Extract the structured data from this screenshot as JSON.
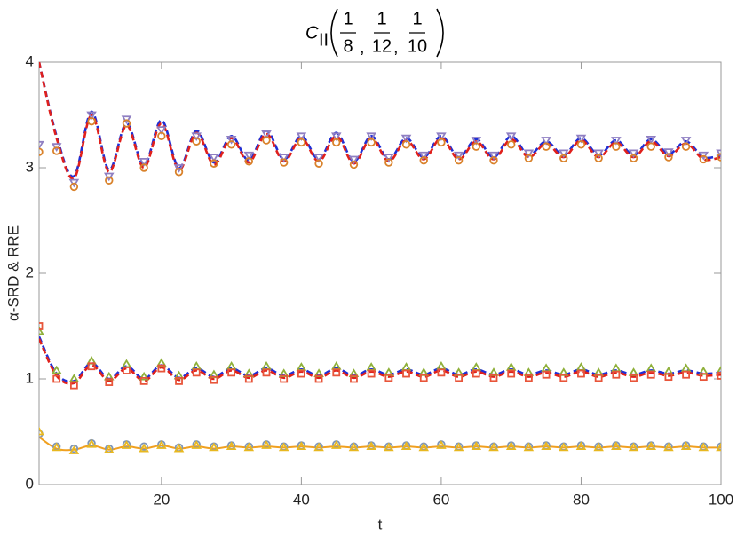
{
  "chart_data": {
    "type": "line",
    "title": {
      "symbol": "C",
      "subscript": "II",
      "fractions": [
        [
          "1",
          "8"
        ],
        [
          "1",
          "12"
        ],
        [
          "1",
          "10"
        ]
      ],
      "separator": ","
    },
    "x_label": "t",
    "y_label": "α-SRD & RRE",
    "xlim": [
      2.5,
      100
    ],
    "ylim": [
      0,
      4
    ],
    "xticks": [
      20,
      40,
      60,
      80,
      100
    ],
    "yticks": [
      0,
      1,
      2,
      3,
      4
    ],
    "x": [
      2.5,
      5,
      7.5,
      10,
      12.5,
      15,
      17.5,
      20,
      22.5,
      25,
      27.5,
      30,
      32.5,
      35,
      37.5,
      40,
      42.5,
      45,
      47.5,
      50,
      52.5,
      55,
      57.5,
      60,
      62.5,
      65,
      67.5,
      70,
      72.5,
      75,
      77.5,
      80,
      82.5,
      85,
      87.5,
      90,
      92.5,
      95,
      97.5,
      100
    ],
    "series": [
      {
        "color": "#1f2fd6",
        "style": "dash",
        "values": [
          4.0,
          3.3,
          2.92,
          3.53,
          2.98,
          3.42,
          3.02,
          3.45,
          3.0,
          3.35,
          3.05,
          3.3,
          3.07,
          3.35,
          3.08,
          3.3,
          3.08,
          3.33,
          3.06,
          3.3,
          3.08,
          3.28,
          3.1,
          3.3,
          3.1,
          3.27,
          3.1,
          3.3,
          3.12,
          3.25,
          3.12,
          3.28,
          3.12,
          3.26,
          3.12,
          3.27,
          3.13,
          3.25,
          3.1,
          3.12
        ]
      },
      {
        "color": "#e0201c",
        "style": "dash",
        "values": [
          4.0,
          3.28,
          2.9,
          3.5,
          2.96,
          3.4,
          3.0,
          3.42,
          2.98,
          3.33,
          3.03,
          3.28,
          3.05,
          3.32,
          3.06,
          3.28,
          3.06,
          3.3,
          3.04,
          3.28,
          3.06,
          3.26,
          3.08,
          3.28,
          3.08,
          3.25,
          3.08,
          3.27,
          3.1,
          3.23,
          3.1,
          3.26,
          3.1,
          3.24,
          3.1,
          3.25,
          3.11,
          3.23,
          3.08,
          3.1
        ]
      },
      {
        "color": "#8f7fc2",
        "style": "triangle",
        "values": [
          3.22,
          3.2,
          2.86,
          3.5,
          2.92,
          3.46,
          3.06,
          3.36,
          3.0,
          3.3,
          3.1,
          3.27,
          3.12,
          3.32,
          3.1,
          3.3,
          3.1,
          3.3,
          3.08,
          3.3,
          3.1,
          3.28,
          3.12,
          3.3,
          3.12,
          3.26,
          3.12,
          3.3,
          3.14,
          3.26,
          3.14,
          3.28,
          3.14,
          3.26,
          3.14,
          3.27,
          3.15,
          3.26,
          3.12,
          3.14
        ]
      },
      {
        "color": "#d9822b",
        "style": "circle",
        "values": [
          3.15,
          3.16,
          2.82,
          3.44,
          2.88,
          3.42,
          3.0,
          3.3,
          2.96,
          3.25,
          3.04,
          3.22,
          3.06,
          3.26,
          3.05,
          3.24,
          3.04,
          3.24,
          3.03,
          3.24,
          3.05,
          3.22,
          3.07,
          3.24,
          3.07,
          3.2,
          3.07,
          3.22,
          3.09,
          3.2,
          3.09,
          3.22,
          3.09,
          3.2,
          3.09,
          3.2,
          3.1,
          3.2,
          3.08,
          3.1
        ]
      },
      {
        "color": "#1f2fd6",
        "style": "dash",
        "values": [
          1.4,
          1.05,
          0.98,
          1.15,
          1.0,
          1.12,
          1.0,
          1.13,
          1.01,
          1.1,
          1.02,
          1.1,
          1.03,
          1.1,
          1.03,
          1.09,
          1.03,
          1.1,
          1.03,
          1.09,
          1.04,
          1.09,
          1.04,
          1.1,
          1.04,
          1.09,
          1.04,
          1.09,
          1.04,
          1.08,
          1.04,
          1.09,
          1.04,
          1.08,
          1.04,
          1.08,
          1.05,
          1.08,
          1.05,
          1.06
        ]
      },
      {
        "color": "#e0201c",
        "style": "dash",
        "values": [
          1.38,
          1.03,
          0.96,
          1.13,
          0.98,
          1.1,
          0.98,
          1.11,
          0.99,
          1.08,
          1.0,
          1.08,
          1.01,
          1.08,
          1.01,
          1.07,
          1.01,
          1.08,
          1.01,
          1.07,
          1.02,
          1.07,
          1.02,
          1.08,
          1.02,
          1.07,
          1.02,
          1.07,
          1.02,
          1.06,
          1.02,
          1.07,
          1.02,
          1.06,
          1.02,
          1.06,
          1.03,
          1.06,
          1.03,
          1.04
        ]
      },
      {
        "color": "#8fb03a",
        "style": "triangle",
        "values": [
          1.45,
          1.08,
          1.0,
          1.17,
          1.02,
          1.14,
          1.02,
          1.15,
          1.03,
          1.12,
          1.04,
          1.12,
          1.05,
          1.12,
          1.05,
          1.11,
          1.05,
          1.12,
          1.05,
          1.11,
          1.06,
          1.11,
          1.06,
          1.12,
          1.06,
          1.11,
          1.06,
          1.11,
          1.06,
          1.1,
          1.06,
          1.11,
          1.06,
          1.1,
          1.06,
          1.1,
          1.07,
          1.1,
          1.07,
          1.08
        ]
      },
      {
        "color": "#e8553a",
        "style": "square",
        "values": [
          1.5,
          1.0,
          0.94,
          1.12,
          0.97,
          1.08,
          0.98,
          1.1,
          0.98,
          1.06,
          0.99,
          1.06,
          1.0,
          1.06,
          1.0,
          1.05,
          1.0,
          1.06,
          1.0,
          1.05,
          1.01,
          1.05,
          1.01,
          1.06,
          1.01,
          1.05,
          1.01,
          1.05,
          1.01,
          1.04,
          1.01,
          1.05,
          1.01,
          1.04,
          1.01,
          1.04,
          1.02,
          1.04,
          1.02,
          1.03
        ]
      },
      {
        "color": "#f0a020",
        "style": "solid",
        "values": [
          0.45,
          0.34,
          0.33,
          0.37,
          0.33,
          0.36,
          0.34,
          0.37,
          0.34,
          0.36,
          0.34,
          0.36,
          0.35,
          0.36,
          0.35,
          0.36,
          0.35,
          0.36,
          0.35,
          0.36,
          0.35,
          0.36,
          0.35,
          0.36,
          0.35,
          0.36,
          0.35,
          0.36,
          0.35,
          0.36,
          0.35,
          0.36,
          0.35,
          0.36,
          0.35,
          0.36,
          0.35,
          0.36,
          0.35,
          0.35
        ]
      },
      {
        "color": "#7f96b8",
        "style": "circle",
        "values": [
          0.48,
          0.36,
          0.34,
          0.39,
          0.34,
          0.38,
          0.36,
          0.38,
          0.35,
          0.38,
          0.36,
          0.37,
          0.36,
          0.38,
          0.36,
          0.37,
          0.36,
          0.38,
          0.36,
          0.37,
          0.36,
          0.37,
          0.36,
          0.38,
          0.36,
          0.37,
          0.36,
          0.37,
          0.36,
          0.37,
          0.36,
          0.37,
          0.36,
          0.37,
          0.36,
          0.37,
          0.36,
          0.37,
          0.36,
          0.36
        ]
      },
      {
        "color": "#e8b820",
        "style": "triangle",
        "values": [
          0.5,
          0.35,
          0.32,
          0.38,
          0.33,
          0.37,
          0.34,
          0.37,
          0.34,
          0.37,
          0.35,
          0.36,
          0.35,
          0.37,
          0.35,
          0.36,
          0.35,
          0.37,
          0.35,
          0.36,
          0.35,
          0.36,
          0.35,
          0.37,
          0.35,
          0.36,
          0.35,
          0.36,
          0.35,
          0.36,
          0.35,
          0.36,
          0.35,
          0.36,
          0.35,
          0.36,
          0.35,
          0.36,
          0.35,
          0.35
        ]
      }
    ]
  }
}
